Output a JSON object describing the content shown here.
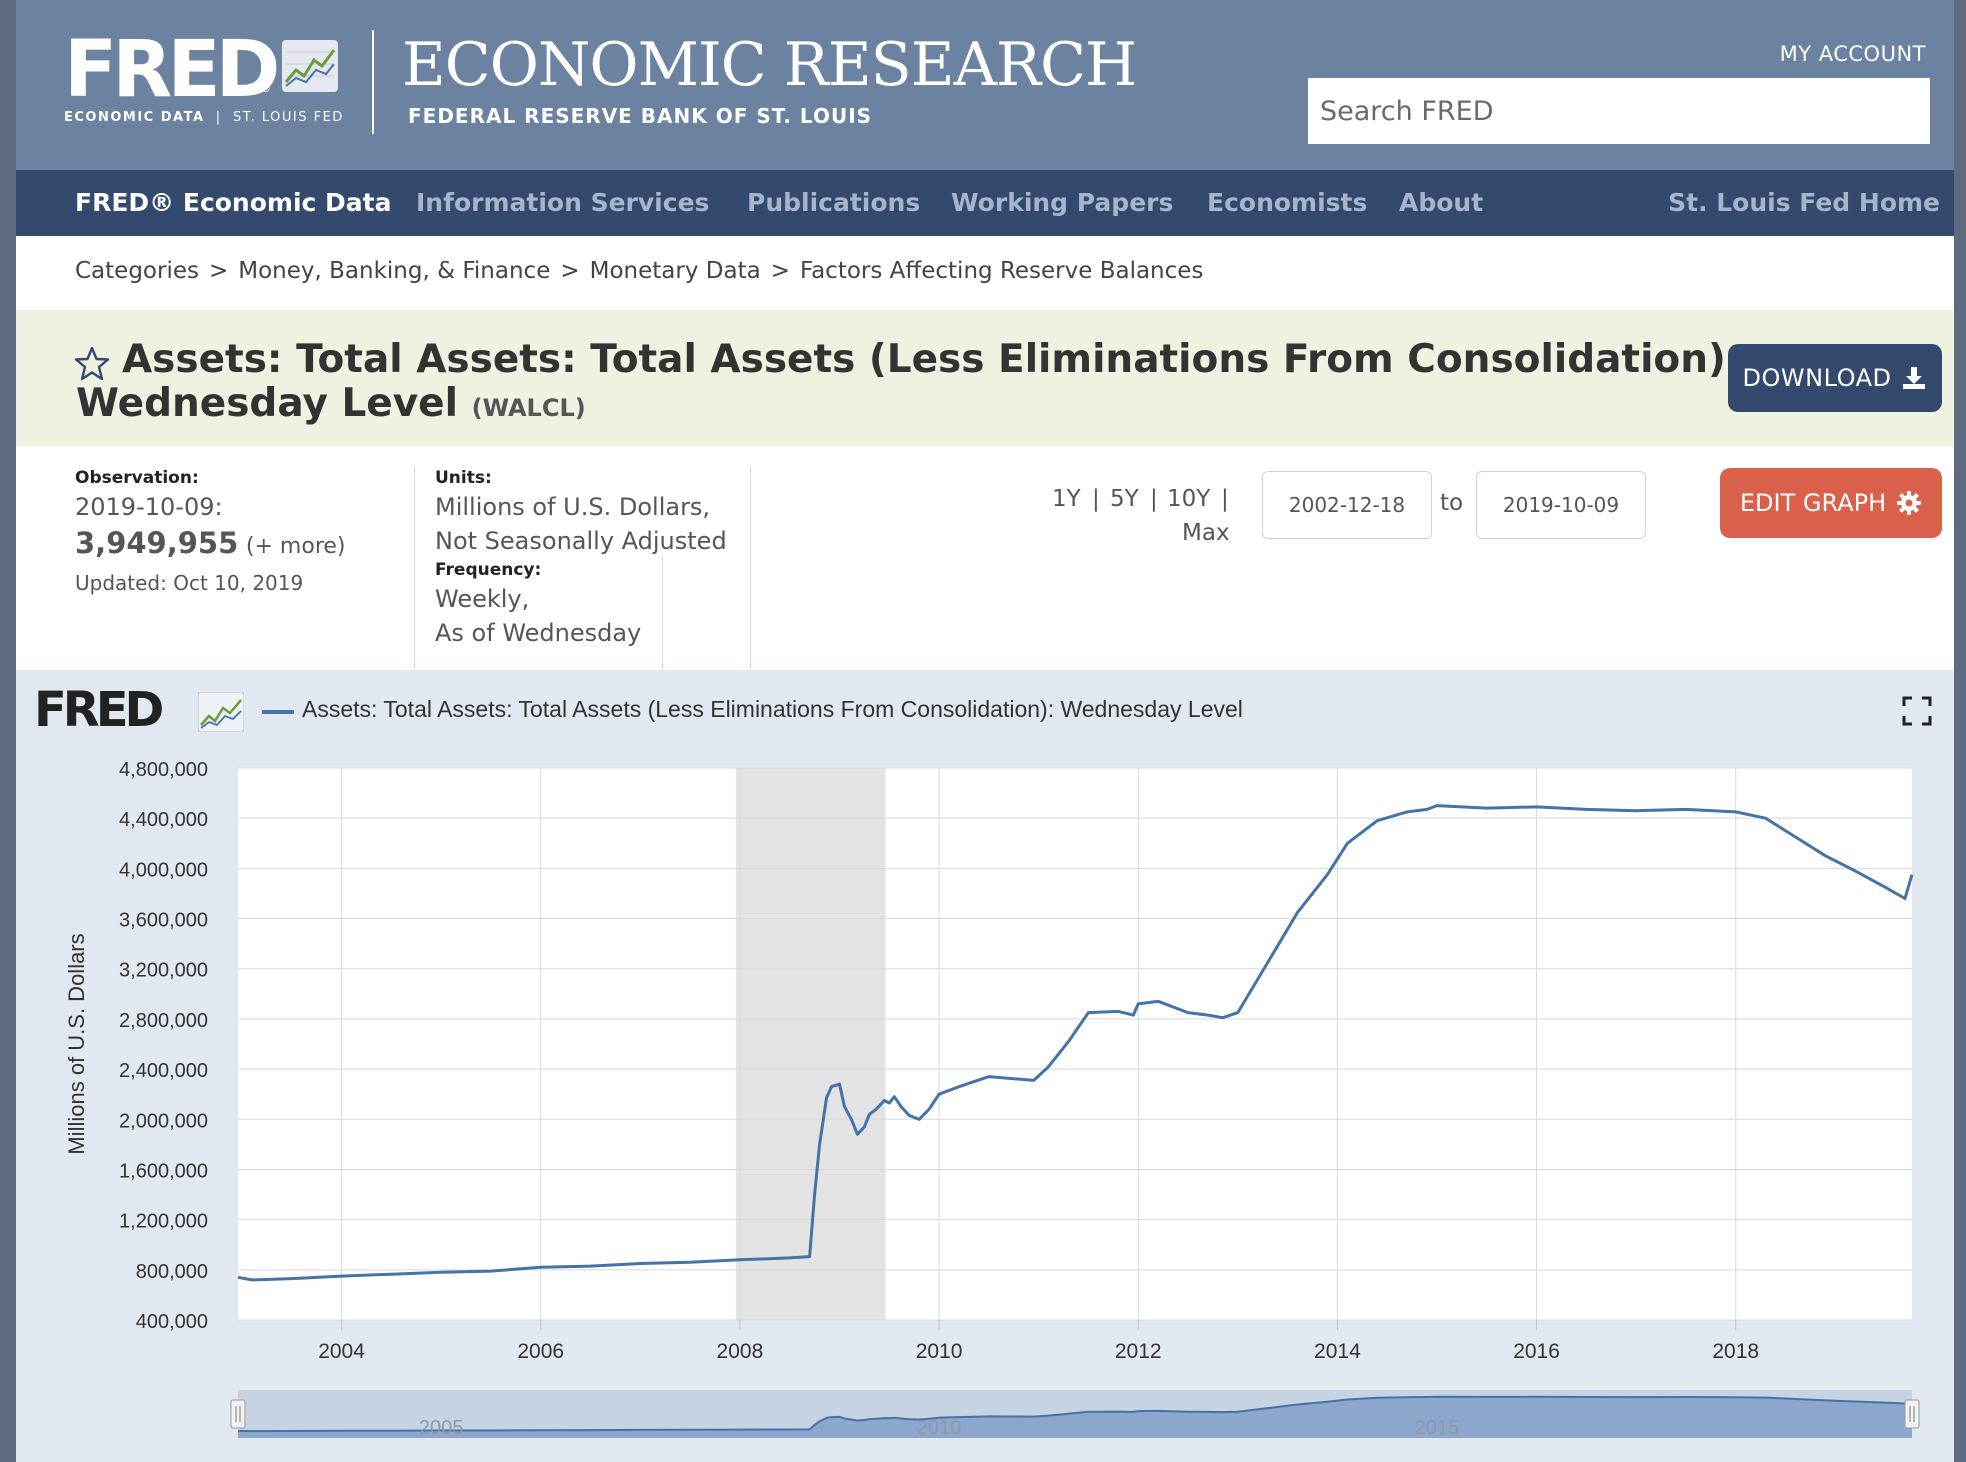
{
  "header": {
    "logo_text": "FRED",
    "logo_sub_bold": "ECONOMIC DATA",
    "logo_sub_sep": "|",
    "logo_sub_rest": "ST. LOUIS FED",
    "site_title": "ECONOMIC RESEARCH",
    "site_subtitle": "FEDERAL RESERVE BANK OF ST. LOUIS",
    "my_account": "MY ACCOUNT",
    "search_placeholder": "Search FRED"
  },
  "nav": {
    "items": [
      {
        "label": "FRED® Economic Data"
      },
      {
        "label": "Information Services"
      },
      {
        "label": "Publications"
      },
      {
        "label": "Working Papers"
      },
      {
        "label": "Economists"
      },
      {
        "label": "About"
      },
      {
        "label": "St. Louis Fed Home"
      }
    ]
  },
  "breadcrumb": [
    "Categories",
    "Money, Banking, & Finance",
    "Monetary Data",
    "Factors Affecting Reserve Balances"
  ],
  "breadcrumb_sep": ">",
  "series": {
    "title": "Assets: Total Assets: Total Assets (Less Eliminations From Consolidation): Wednesday Level",
    "id": "(WALCL)",
    "download_label": "DOWNLOAD",
    "edit_label": "EDIT GRAPH"
  },
  "meta": {
    "observation_label": "Observation:",
    "observation_date": "2019-10-09:",
    "observation_value": "3,949,955",
    "more": "(+ more)",
    "updated": "Updated: Oct 10, 2019",
    "units_label": "Units:",
    "units_line1": "Millions of U.S. Dollars,",
    "units_line2": "Not Seasonally Adjusted",
    "frequency_label": "Frequency:",
    "frequency_line1": "Weekly,",
    "frequency_line2": "As of Wednesday"
  },
  "range": {
    "links": [
      "1Y",
      "5Y",
      "10Y",
      "Max"
    ],
    "sep": "|",
    "start": "2002-12-18",
    "to": "to",
    "end": "2019-10-09"
  },
  "colors": {
    "header": "#6b82a1",
    "nav": "#34496e",
    "series_line": "#4572a7",
    "edit_button": "#d9614b",
    "recession": "#e3e3e3"
  },
  "chart_data": {
    "type": "line",
    "title": "Assets: Total Assets: Total Assets (Less Eliminations From Consolidation): Wednesday Level",
    "xlabel": "",
    "ylabel": "Millions of U.S. Dollars",
    "xlim": [
      2002.96,
      2019.77
    ],
    "ylim": [
      400000,
      4800000
    ],
    "yticks": [
      400000,
      800000,
      1200000,
      1600000,
      2000000,
      2400000,
      2800000,
      3200000,
      3600000,
      4000000,
      4400000,
      4800000
    ],
    "ytick_labels": [
      "400,000",
      "800,000",
      "1,200,000",
      "1,600,000",
      "2,000,000",
      "2,400,000",
      "2,800,000",
      "3,200,000",
      "3,600,000",
      "4,000,000",
      "4,400,000",
      "4,800,000"
    ],
    "xticks": [
      2004,
      2006,
      2008,
      2010,
      2012,
      2014,
      2016,
      2018
    ],
    "xtick_labels": [
      "2004",
      "2006",
      "2008",
      "2010",
      "2012",
      "2014",
      "2016",
      "2018"
    ],
    "grid": true,
    "recession": [
      2007.96,
      2009.46
    ],
    "navigator_labels": [
      {
        "x": 2005,
        "label": "2005"
      },
      {
        "x": 2010,
        "label": "2010"
      },
      {
        "x": 2015,
        "label": "2015"
      }
    ],
    "series": [
      {
        "name": "Assets: Total Assets: Total Assets (Less Eliminations From Consolidation): Wednesday Level",
        "x": [
          2002.96,
          2003.1,
          2003.5,
          2004.0,
          2004.5,
          2005.0,
          2005.5,
          2006.0,
          2006.5,
          2007.0,
          2007.5,
          2008.0,
          2008.5,
          2008.7,
          2008.75,
          2008.8,
          2008.87,
          2008.92,
          2009.0,
          2009.05,
          2009.12,
          2009.18,
          2009.25,
          2009.3,
          2009.37,
          2009.45,
          2009.5,
          2009.55,
          2009.62,
          2009.7,
          2009.8,
          2009.9,
          2010.0,
          2010.2,
          2010.5,
          2010.8,
          2010.95,
          2011.1,
          2011.3,
          2011.5,
          2011.8,
          2011.95,
          2012.0,
          2012.2,
          2012.5,
          2012.7,
          2012.85,
          2013.0,
          2013.3,
          2013.6,
          2013.9,
          2014.1,
          2014.4,
          2014.7,
          2014.9,
          2015.0,
          2015.5,
          2016.0,
          2016.5,
          2017.0,
          2017.5,
          2018.0,
          2018.3,
          2018.6,
          2018.9,
          2019.2,
          2019.5,
          2019.7,
          2019.77
        ],
        "y": [
          740000,
          720000,
          730000,
          750000,
          765000,
          780000,
          790000,
          820000,
          830000,
          850000,
          860000,
          880000,
          895000,
          905000,
          1400000,
          1800000,
          2170000,
          2260000,
          2280000,
          2100000,
          2000000,
          1880000,
          1940000,
          2040000,
          2080000,
          2150000,
          2130000,
          2180000,
          2100000,
          2030000,
          2000000,
          2080000,
          2200000,
          2260000,
          2340000,
          2320000,
          2310000,
          2420000,
          2620000,
          2850000,
          2860000,
          2830000,
          2920000,
          2940000,
          2850000,
          2830000,
          2810000,
          2850000,
          3250000,
          3650000,
          3950000,
          4200000,
          4380000,
          4450000,
          4470000,
          4500000,
          4480000,
          4490000,
          4470000,
          4460000,
          4470000,
          4450000,
          4400000,
          4250000,
          4100000,
          3980000,
          3850000,
          3760000,
          3950000
        ]
      }
    ]
  }
}
